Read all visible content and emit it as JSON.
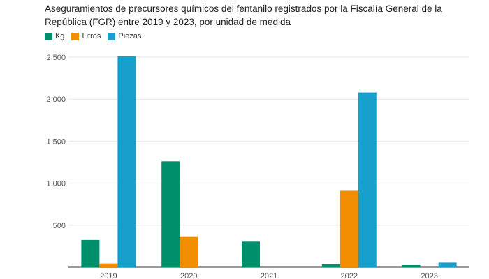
{
  "title": "Aseguramientos de precursores químicos del fentanilo registrados por la Fiscalía General de la República (FGR) entre 2019 y 2023, por unidad de medida",
  "chart_data": {
    "type": "bar",
    "categories": [
      "2019",
      "2020",
      "2021",
      "2022",
      "2023"
    ],
    "series": [
      {
        "name": "Kg",
        "color": "#008F6B",
        "values": [
          325,
          1260,
          305,
          35,
          25
        ]
      },
      {
        "name": "Litros",
        "color": "#F28C00",
        "values": [
          45,
          360,
          0,
          910,
          0
        ]
      },
      {
        "name": "Piezas",
        "color": "#18A0CC",
        "values": [
          2510,
          0,
          0,
          2080,
          55
        ]
      }
    ],
    "yticks": [
      500,
      1000,
      1500,
      2000,
      2500
    ],
    "ytick_labels": [
      "500",
      "1 000",
      "1 500",
      "2 000",
      "2 500"
    ],
    "ylim": [
      0,
      2600
    ],
    "xlabel": "",
    "ylabel": "",
    "grid": true,
    "legend_position": "top-left"
  }
}
